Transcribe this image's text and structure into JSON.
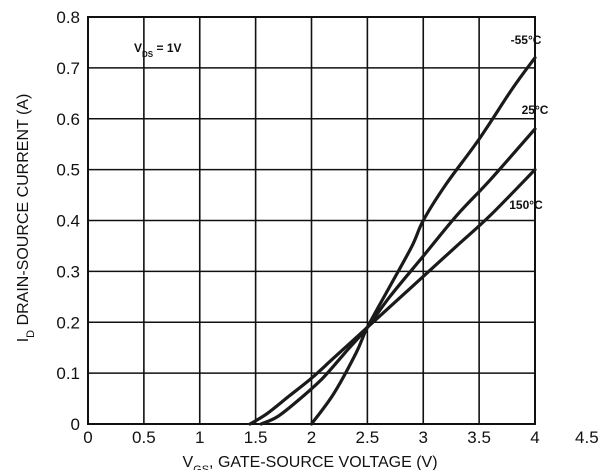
{
  "chart_data": {
    "type": "line",
    "xlabel": "V_GS, GATE-SOURCE VOLTAGE (V)",
    "xlabel_main": "V",
    "xlabel_sub": "GS",
    "xlabel_rest": ", GATE-SOURCE VOLTAGE (V)",
    "ylabel": "I_D DRAIN-SOURCE CURRENT (A)",
    "ylabel_main": "I",
    "ylabel_sub": "D",
    "ylabel_rest": " DRAIN-SOURCE CURRENT (A)",
    "xlim": [
      0,
      4.0
    ],
    "ylim": [
      0,
      0.8
    ],
    "x_ticks": [
      "0",
      "0.5",
      "1",
      "1.5",
      "2",
      "2.5",
      "3",
      "3.5",
      "4",
      "4.5"
    ],
    "y_ticks": [
      "0",
      "0.1",
      "0.2",
      "0.3",
      "0.4",
      "0.5",
      "0.6",
      "0.7",
      "0.8"
    ],
    "grid": true,
    "annotation": {
      "main": "V",
      "sub": "DS",
      "rest": " = 1V"
    },
    "series": [
      {
        "name": "-55°C",
        "label": "-55°C",
        "x": [
          2.0,
          2.2,
          2.4,
          2.5,
          2.7,
          2.9,
          3.0,
          3.2,
          3.5,
          3.8,
          4.0
        ],
        "y": [
          0.0,
          0.06,
          0.14,
          0.19,
          0.27,
          0.35,
          0.4,
          0.47,
          0.56,
          0.66,
          0.72
        ]
      },
      {
        "name": "25°C",
        "label": "25°C",
        "x": [
          1.55,
          1.7,
          1.9,
          2.1,
          2.3,
          2.5,
          2.7,
          3.0,
          3.3,
          3.6,
          4.0
        ],
        "y": [
          0.0,
          0.015,
          0.05,
          0.09,
          0.14,
          0.19,
          0.25,
          0.33,
          0.41,
          0.48,
          0.58
        ]
      },
      {
        "name": "150°C",
        "label": "150°C",
        "x": [
          1.45,
          1.6,
          1.8,
          2.0,
          2.2,
          2.5,
          2.8,
          3.0,
          3.3,
          3.6,
          4.0
        ],
        "y": [
          0.0,
          0.02,
          0.055,
          0.09,
          0.13,
          0.19,
          0.25,
          0.29,
          0.35,
          0.41,
          0.5
        ]
      }
    ]
  }
}
